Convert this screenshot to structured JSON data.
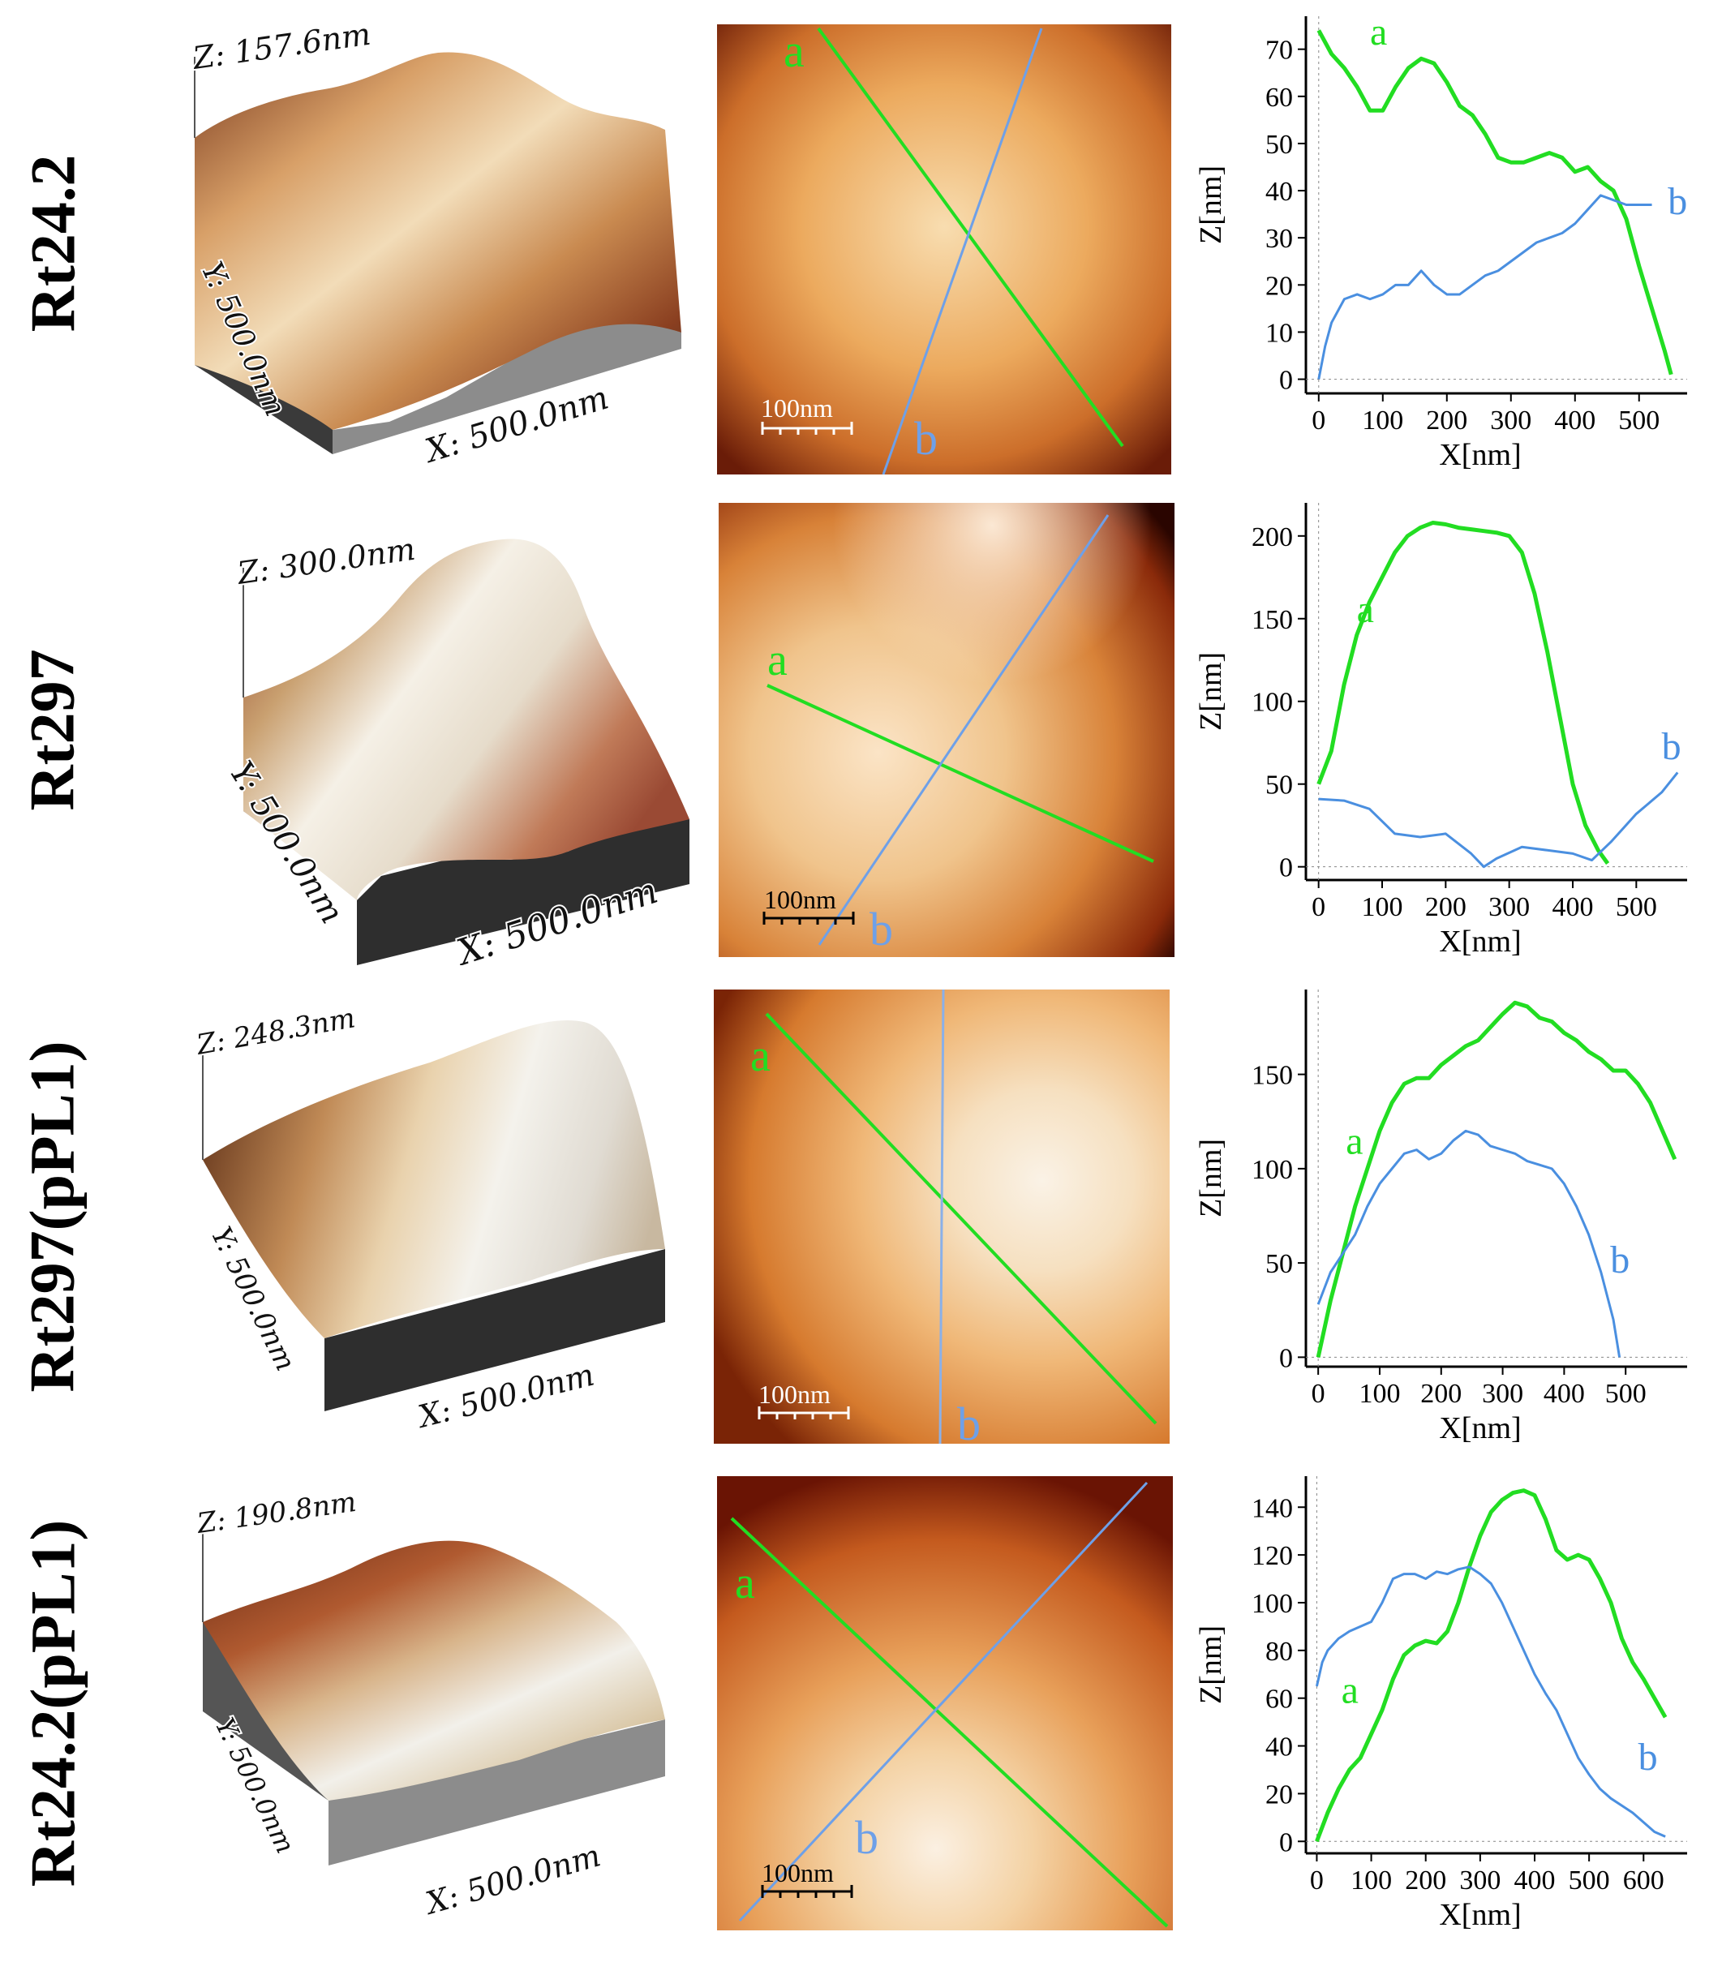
{
  "panels": [
    {
      "label": "Rt24.2",
      "surface": {
        "z_label": "Z: 157.6nm",
        "y_label": "Y: 500.0nm",
        "x_label": "X: 500.0nm"
      },
      "image": {
        "scale_bar": "100nm",
        "line_a": "a",
        "line_b": "b"
      },
      "chart_data": {
        "type": "line",
        "xlabel": "X[nm]",
        "ylabel": "Z[nm]",
        "xlim": [
          -20,
          575
        ],
        "ylim": [
          -3,
          77
        ],
        "xticks": [
          0,
          100,
          200,
          300,
          400,
          500
        ],
        "yticks": [
          0,
          10,
          20,
          30,
          40,
          50,
          60,
          70
        ],
        "series": [
          {
            "name": "a",
            "color": "#22dd22",
            "label_at": [
              80,
              71
            ],
            "x": [
              0,
              20,
              40,
              60,
              80,
              100,
              120,
              140,
              160,
              180,
              200,
              220,
              240,
              260,
              280,
              300,
              320,
              340,
              360,
              380,
              400,
              420,
              440,
              460,
              480,
              500,
              520,
              540,
              550
            ],
            "y": [
              74,
              69,
              66,
              62,
              57,
              57,
              62,
              66,
              68,
              67,
              63,
              58,
              56,
              52,
              47,
              46,
              46,
              47,
              48,
              47,
              44,
              45,
              42,
              40,
              34,
              24,
              15,
              6,
              1
            ]
          },
          {
            "name": "b",
            "color": "#4a8fe0",
            "label_at": [
              545,
              35
            ],
            "x": [
              0,
              10,
              20,
              40,
              60,
              80,
              100,
              120,
              140,
              160,
              180,
              200,
              220,
              240,
              260,
              280,
              300,
              320,
              340,
              360,
              380,
              400,
              420,
              440,
              460,
              480,
              500,
              520
            ],
            "y": [
              0,
              7,
              12,
              17,
              18,
              17,
              18,
              20,
              20,
              23,
              20,
              18,
              18,
              20,
              22,
              23,
              25,
              27,
              29,
              30,
              31,
              33,
              36,
              39,
              38,
              37,
              37,
              37
            ]
          }
        ]
      }
    },
    {
      "label": "Rt297",
      "surface": {
        "z_label": "Z: 300.0nm",
        "y_label": "Y: 500.0nm",
        "x_label": "X: 500.0nm"
      },
      "image": {
        "scale_bar": "100nm",
        "line_a": "a",
        "line_b": "b"
      },
      "chart_data": {
        "type": "line",
        "xlabel": "X[nm]",
        "ylabel": "Z[nm]",
        "xlim": [
          -20,
          580
        ],
        "ylim": [
          -8,
          220
        ],
        "xticks": [
          0,
          100,
          200,
          300,
          400,
          500
        ],
        "yticks": [
          0,
          50,
          100,
          150,
          200
        ],
        "series": [
          {
            "name": "a",
            "color": "#22dd22",
            "label_at": [
              60,
              148
            ],
            "x": [
              0,
              20,
              40,
              60,
              80,
              100,
              120,
              140,
              160,
              180,
              200,
              220,
              240,
              260,
              280,
              300,
              320,
              340,
              360,
              380,
              400,
              420,
              440,
              455
            ],
            "y": [
              50,
              70,
              110,
              140,
              160,
              175,
              190,
              200,
              205,
              208,
              207,
              205,
              204,
              203,
              202,
              200,
              190,
              165,
              130,
              90,
              50,
              25,
              10,
              2
            ]
          },
          {
            "name": "b",
            "color": "#4a8fe0",
            "label_at": [
              540,
              65
            ],
            "x": [
              0,
              40,
              80,
              120,
              160,
              200,
              240,
              260,
              280,
              320,
              360,
              400,
              430,
              460,
              500,
              540,
              565
            ],
            "y": [
              41,
              40,
              35,
              20,
              18,
              20,
              8,
              0,
              5,
              12,
              10,
              8,
              4,
              15,
              32,
              45,
              57
            ]
          }
        ]
      }
    },
    {
      "label": "Rt297(pPL1)",
      "surface": {
        "z_label": "Z: 248.3nm",
        "y_label": "Y: 500.0nm",
        "x_label": "X: 500.0nm"
      },
      "image": {
        "scale_bar": "100nm",
        "line_a": "a",
        "line_b": "b"
      },
      "chart_data": {
        "type": "line",
        "xlabel": "X[nm]",
        "ylabel": "Z[nm]",
        "xlim": [
          -20,
          600
        ],
        "ylim": [
          -5,
          195
        ],
        "xticks": [
          0,
          100,
          200,
          300,
          400,
          500
        ],
        "yticks": [
          0,
          50,
          100,
          150
        ],
        "series": [
          {
            "name": "a",
            "color": "#22dd22",
            "label_at": [
              45,
              108
            ],
            "x": [
              0,
              20,
              40,
              60,
              80,
              100,
              120,
              140,
              160,
              180,
              200,
              220,
              240,
              260,
              280,
              300,
              320,
              340,
              360,
              380,
              400,
              420,
              440,
              460,
              480,
              500,
              520,
              540,
              560,
              580
            ],
            "y": [
              0,
              30,
              55,
              80,
              100,
              120,
              135,
              145,
              148,
              148,
              155,
              160,
              165,
              168,
              175,
              182,
              188,
              186,
              180,
              178,
              172,
              168,
              162,
              158,
              152,
              152,
              145,
              135,
              120,
              105
            ]
          },
          {
            "name": "b",
            "color": "#4a8fe0",
            "label_at": [
              475,
              45
            ],
            "x": [
              0,
              20,
              40,
              60,
              80,
              100,
              120,
              140,
              160,
              180,
              200,
              220,
              240,
              260,
              280,
              300,
              320,
              340,
              360,
              380,
              400,
              420,
              440,
              460,
              480,
              490
            ],
            "y": [
              28,
              45,
              55,
              65,
              80,
              92,
              100,
              108,
              110,
              105,
              108,
              115,
              120,
              118,
              112,
              110,
              108,
              104,
              102,
              100,
              92,
              80,
              65,
              45,
              20,
              0
            ]
          }
        ]
      }
    },
    {
      "label": "Rt24.2(pPL1)",
      "surface": {
        "z_label": "Z: 190.8nm",
        "y_label": "Y: 500.0nm",
        "x_label": "X: 500.0nm"
      },
      "image": {
        "scale_bar": "100nm",
        "line_a": "a",
        "line_b": "b"
      },
      "chart_data": {
        "type": "line",
        "xlabel": "X[nm]",
        "ylabel": "Z[nm]",
        "xlim": [
          -20,
          680
        ],
        "ylim": [
          -5,
          153
        ],
        "xticks": [
          0,
          100,
          200,
          300,
          400,
          500,
          600
        ],
        "yticks": [
          0,
          20,
          40,
          60,
          80,
          100,
          120,
          140
        ],
        "series": [
          {
            "name": "a",
            "color": "#22dd22",
            "label_at": [
              45,
              58
            ],
            "x": [
              0,
              20,
              40,
              60,
              80,
              100,
              120,
              140,
              160,
              180,
              200,
              220,
              240,
              260,
              280,
              300,
              320,
              340,
              360,
              380,
              400,
              420,
              440,
              460,
              480,
              500,
              520,
              540,
              560,
              580,
              600,
              620,
              640
            ],
            "y": [
              0,
              12,
              22,
              30,
              35,
              45,
              55,
              68,
              78,
              82,
              84,
              83,
              88,
              100,
              115,
              128,
              138,
              143,
              146,
              147,
              145,
              135,
              122,
              118,
              120,
              118,
              110,
              100,
              85,
              75,
              68,
              60,
              52
            ]
          },
          {
            "name": "b",
            "color": "#4a8fe0",
            "label_at": [
              590,
              30
            ],
            "x": [
              0,
              10,
              20,
              40,
              60,
              80,
              100,
              120,
              140,
              160,
              180,
              200,
              220,
              240,
              260,
              280,
              300,
              320,
              340,
              360,
              380,
              400,
              420,
              440,
              460,
              480,
              500,
              520,
              540,
              560,
              580,
              600,
              620,
              640
            ],
            "y": [
              65,
              75,
              80,
              85,
              88,
              90,
              92,
              100,
              110,
              112,
              112,
              110,
              113,
              112,
              114,
              115,
              112,
              108,
              100,
              90,
              80,
              70,
              62,
              55,
              45,
              35,
              28,
              22,
              18,
              15,
              12,
              8,
              4,
              2
            ]
          }
        ]
      }
    }
  ]
}
